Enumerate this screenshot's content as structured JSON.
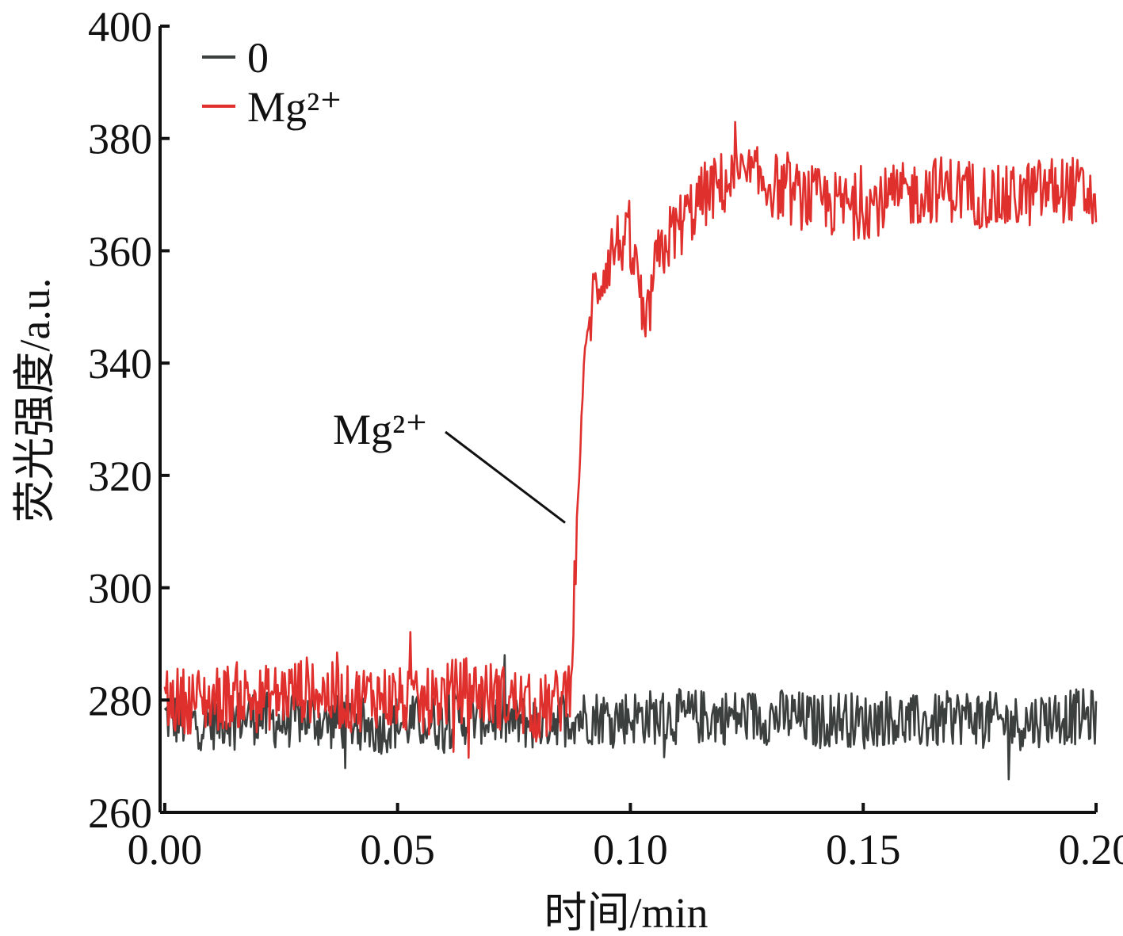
{
  "chart_data": {
    "type": "line",
    "title": "",
    "xlabel": "时间/min",
    "ylabel": "荧光强度/a.u.",
    "xlim": [
      -0.001,
      0.2
    ],
    "ylim": [
      260,
      400
    ],
    "x_ticks": [
      "0.00",
      "0.05",
      "0.10",
      "0.15",
      "0.20"
    ],
    "y_ticks": [
      "260",
      "280",
      "300",
      "320",
      "340",
      "360",
      "380",
      "400"
    ],
    "grid": false,
    "legend_position": "top-left",
    "series": [
      {
        "name": "0",
        "color": "#3b3f3e",
        "x": [
          0.0,
          0.005,
          0.01,
          0.015,
          0.02,
          0.025,
          0.03,
          0.035,
          0.04,
          0.045,
          0.05,
          0.055,
          0.06,
          0.065,
          0.07,
          0.075,
          0.08,
          0.085,
          0.09,
          0.095,
          0.1,
          0.105,
          0.11,
          0.115,
          0.12,
          0.125,
          0.13,
          0.135,
          0.14,
          0.145,
          0.15,
          0.155,
          0.16,
          0.165,
          0.17,
          0.175,
          0.18,
          0.185,
          0.19,
          0.195,
          0.2
        ],
        "values": [
          277,
          276,
          276,
          277,
          277,
          276,
          277,
          276,
          276,
          275,
          276,
          276,
          276,
          277,
          277,
          276,
          276,
          277,
          277,
          277,
          277,
          277,
          277,
          277,
          277,
          277,
          277,
          277,
          276,
          277,
          276,
          277,
          276,
          276,
          277,
          277,
          276,
          276,
          277,
          277,
          277
        ],
        "noise": 5
      },
      {
        "name": "Mg²⁺",
        "color": "#e0302d",
        "x": [
          0.0,
          0.005,
          0.01,
          0.015,
          0.02,
          0.025,
          0.03,
          0.035,
          0.04,
          0.045,
          0.05,
          0.055,
          0.06,
          0.065,
          0.07,
          0.075,
          0.08,
          0.085,
          0.087,
          0.088,
          0.089,
          0.09,
          0.092,
          0.094,
          0.096,
          0.098,
          0.1,
          0.102,
          0.103,
          0.105,
          0.108,
          0.112,
          0.116,
          0.12,
          0.125,
          0.13,
          0.135,
          0.14,
          0.145,
          0.15,
          0.155,
          0.16,
          0.165,
          0.17,
          0.175,
          0.18,
          0.185,
          0.19,
          0.195,
          0.2
        ],
        "values": [
          280,
          280,
          280,
          281,
          280,
          281,
          282,
          281,
          280,
          281,
          280,
          279,
          281,
          282,
          281,
          280,
          278,
          280,
          283,
          300,
          320,
          340,
          352,
          356,
          360,
          362,
          360,
          354,
          342,
          356,
          362,
          366,
          370,
          372,
          373,
          372,
          370,
          369,
          368,
          368,
          369,
          370,
          371,
          371,
          370,
          369,
          370,
          371,
          371,
          369
        ],
        "noise": 6
      }
    ],
    "annotations": [
      {
        "text": "Mg²⁺",
        "target_x": 0.087,
        "target_y": 312
      }
    ]
  }
}
